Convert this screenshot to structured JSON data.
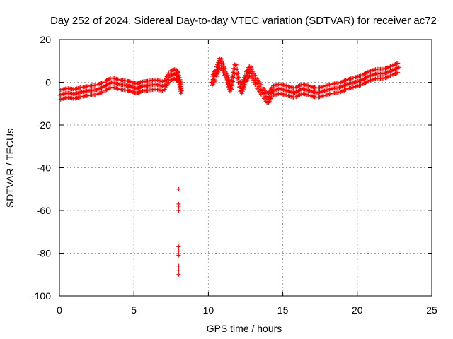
{
  "chart_data": {
    "type": "scatter",
    "title": "Day 252 of 2024, Sidereal Day-to-day VTEC variation (SDTVAR) for receiver ac72",
    "xlabel": "GPS time / hours",
    "ylabel": "SDTVAR / TECUs",
    "xlim": [
      0,
      25
    ],
    "ylim": [
      -100,
      20
    ],
    "xticks": [
      0,
      5,
      10,
      15,
      20,
      25
    ],
    "yticks": [
      -100,
      -80,
      -60,
      -40,
      -20,
      0,
      20
    ],
    "xtick_labels": [
      "0",
      "5",
      "10",
      "15",
      "20",
      "25"
    ],
    "ytick_labels": [
      "-100",
      "-80",
      "-60",
      "-40",
      "-20",
      "0",
      "20"
    ],
    "grid": true,
    "marker": "+",
    "series": [
      {
        "name": "SDTVAR",
        "color": "#ff0000",
        "band_points": [
          [
            0.0,
            -6.0
          ],
          [
            0.5,
            -5.0
          ],
          [
            1.0,
            -5.5
          ],
          [
            1.5,
            -4.5
          ],
          [
            2.0,
            -4.0
          ],
          [
            2.5,
            -3.5
          ],
          [
            3.0,
            -2.0
          ],
          [
            3.5,
            0.0
          ],
          [
            4.0,
            -1.0
          ],
          [
            4.5,
            -1.5
          ],
          [
            4.8,
            -2.0
          ],
          [
            5.2,
            -3.0
          ],
          [
            5.5,
            -2.0
          ],
          [
            6.0,
            -1.5
          ],
          [
            6.5,
            -1.0
          ],
          [
            7.0,
            -2.0
          ],
          [
            7.4,
            3.0
          ],
          [
            7.8,
            4.0
          ],
          [
            8.0,
            2.0
          ],
          [
            8.2,
            -4.0
          ],
          [
            10.2,
            0.0
          ],
          [
            10.5,
            4.0
          ],
          [
            10.8,
            10.0
          ],
          [
            11.2,
            3.0
          ],
          [
            11.5,
            -3.0
          ],
          [
            11.8,
            8.0
          ],
          [
            12.2,
            -4.0
          ],
          [
            12.5,
            2.0
          ],
          [
            12.8,
            6.0
          ],
          [
            13.2,
            0.0
          ],
          [
            13.6,
            -4.0
          ],
          [
            14.0,
            -8.0
          ],
          [
            14.3,
            -4.0
          ],
          [
            14.8,
            -3.0
          ],
          [
            15.3,
            -4.0
          ],
          [
            15.8,
            -5.0
          ],
          [
            16.3,
            -3.0
          ],
          [
            16.8,
            -4.0
          ],
          [
            17.3,
            -5.0
          ],
          [
            17.8,
            -4.0
          ],
          [
            18.3,
            -3.0
          ],
          [
            18.8,
            -2.5
          ],
          [
            19.3,
            -1.0
          ],
          [
            19.8,
            0.0
          ],
          [
            20.3,
            1.0
          ],
          [
            20.8,
            3.0
          ],
          [
            21.3,
            4.0
          ],
          [
            21.8,
            4.0
          ],
          [
            22.3,
            5.5
          ],
          [
            22.8,
            7.0
          ]
        ],
        "outlier_points": [
          [
            8.0,
            -50
          ],
          [
            8.0,
            -57
          ],
          [
            8.0,
            -58
          ],
          [
            8.0,
            -60
          ],
          [
            8.0,
            -77
          ],
          [
            8.0,
            -79
          ],
          [
            8.0,
            -81
          ],
          [
            8.0,
            -86
          ],
          [
            8.0,
            -88
          ],
          [
            8.0,
            -90
          ]
        ]
      }
    ]
  }
}
